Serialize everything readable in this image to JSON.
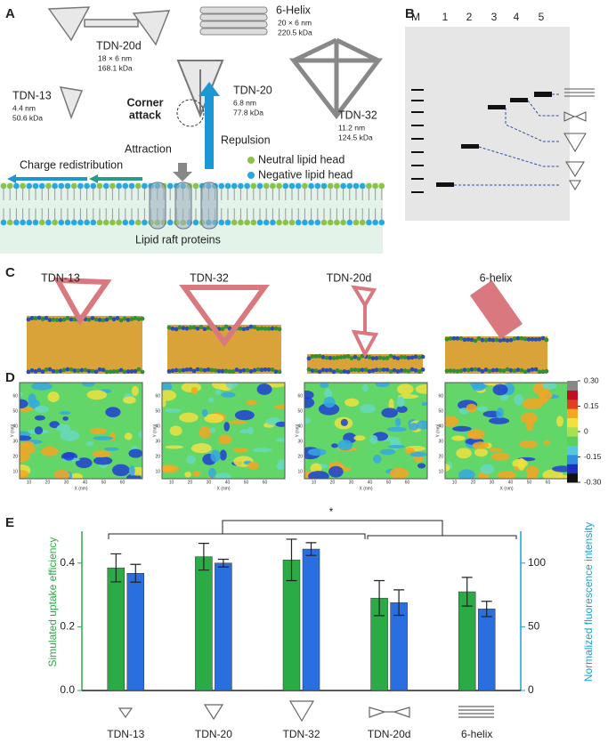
{
  "panel_letters": [
    "A",
    "B",
    "C",
    "D",
    "E"
  ],
  "panel_a": {
    "tdn20d": [
      "TDN-20d",
      "18 × 6 nm",
      "168.1 kDa"
    ],
    "helix": [
      "6-Helix",
      "20 × 6 nm",
      "220.5 kDa"
    ],
    "tdn13": [
      "TDN-13",
      "4.4 nm",
      "50.6 kDa"
    ],
    "tdn20": [
      "TDN-20",
      "6.8 nm",
      "77.8 kDa"
    ],
    "tdn32": [
      "TDN-32",
      "11.2 nm",
      "124.5 kDa"
    ],
    "corner_attack": [
      "Corner",
      "attack"
    ],
    "attraction": "Attraction",
    "repulsion": "Repulsion",
    "charge_redistribution": "Charge redistribution",
    "legend": [
      "Neutral lipid head",
      "Negative lipid head"
    ],
    "proteins": "Lipid raft proteins"
  },
  "panel_b": {
    "lanes": [
      "M",
      "1",
      "2",
      "3",
      "4",
      "5"
    ]
  },
  "panel_c": {
    "labels": [
      "TDN-13",
      "TDN-32",
      "TDN-20d",
      "6-helix"
    ]
  },
  "panel_d": {
    "xlabel": "X (nm)",
    "ylabel": "Y (nm)",
    "ticks": [
      "10",
      "20",
      "30",
      "40",
      "50",
      "60"
    ],
    "colorbar": [
      {
        "value": 0.3,
        "label": "0.30"
      },
      0.15,
      0,
      -0.15,
      {
        "value": -0.3,
        "label": "-0.30"
      }
    ]
  },
  "chart_data": {
    "type": "bar",
    "categories": [
      "TDN-13",
      "TDN-20",
      "TDN-32",
      "TDN-20d",
      "6-helix"
    ],
    "ylabel": "Simulated uptake efficiency",
    "y2label": "Normalized fluorescence intensity",
    "ylim": [
      0,
      0.5
    ],
    "yticks": [
      {
        "value": 0,
        "label": "0.0"
      },
      0.2,
      0.4
    ],
    "y2lim": [
      0,
      125
    ],
    "y2ticks": [
      0,
      50,
      100
    ],
    "annotation": "*",
    "series": [
      {
        "color": "#2bab45",
        "values": [
          0.385,
          0.42,
          0.41,
          0.29,
          0.31
        ],
        "errors": [
          0.044,
          0.042,
          0.065,
          0.055,
          0.045
        ]
      },
      {
        "color": "#2a6fe0",
        "axis": "y2",
        "values": [
          92,
          100,
          111,
          69,
          64
        ],
        "errors": [
          7,
          3,
          5,
          10,
          6
        ]
      }
    ]
  }
}
